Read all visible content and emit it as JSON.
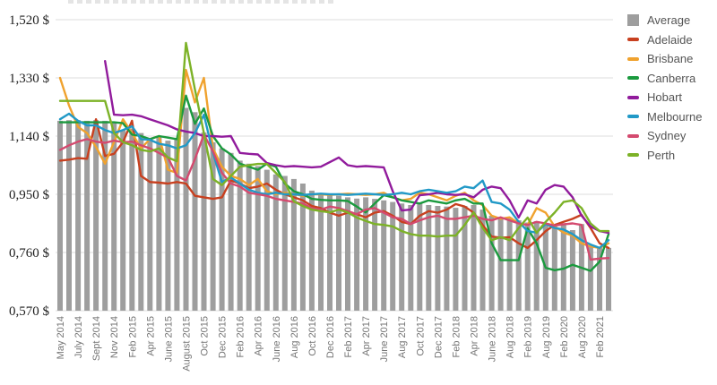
{
  "title_cropped": "",
  "chart_data": {
    "type": "combo-bar-line",
    "unit": "$",
    "grid": true,
    "legend_position": "right",
    "ylim": [
      0.57,
      1.52
    ],
    "y_ticks": {
      "values": [
        1.52,
        1.33,
        1.14,
        0.95,
        0.76,
        0.57
      ],
      "labels": [
        "1,520 $",
        "1,330 $",
        "1,140 $",
        "0,950 $",
        "0,760 $",
        "0,570 $"
      ]
    },
    "n_points": 62,
    "label_every_nth_point": 2,
    "x_tick_labels": [
      "May 2014",
      "July 2014",
      "Sept 2014",
      "Nov 2014",
      "Feb 2015",
      "Apr 2015",
      "June 2015",
      "August 2015",
      "Oct 2015",
      "Dec 2015",
      "Feb 2016",
      "Apr 2016",
      "June 2016",
      "Aug 2016",
      "Oct 2016",
      "Dec 2016",
      "Feb 2017",
      "Apr 2017",
      "June 2017",
      "Aug 2017",
      "Oct 2017",
      "Dec 2017",
      "Feb 2018",
      "Apr 2018",
      "June 2018",
      "Aug 2018",
      "Feb 2019",
      "Aug 2019",
      "Feb 2020",
      "Aug 2020",
      "Feb 2021"
    ],
    "series": [
      {
        "name": "Average",
        "type": "bar",
        "color": "#9E9E9E",
        "values": [
          1.19,
          1.192,
          1.192,
          1.19,
          1.192,
          1.19,
          1.185,
          1.16,
          1.165,
          1.15,
          1.13,
          1.14,
          1.125,
          1.13,
          1.232,
          1.218,
          1.152,
          1.12,
          1.1,
          1.085,
          1.06,
          1.05,
          1.042,
          1.03,
          1.015,
          1.01,
          1.0,
          0.985,
          0.962,
          0.95,
          0.952,
          0.945,
          0.94,
          0.936,
          0.94,
          0.935,
          0.93,
          0.925,
          0.92,
          0.915,
          0.92,
          0.915,
          0.912,
          0.91,
          0.906,
          0.912,
          0.915,
          0.9,
          0.88,
          0.872,
          0.875,
          0.865,
          0.858,
          0.862,
          0.85,
          0.845,
          0.852,
          0.833,
          0.853,
          0.78,
          0.778,
          0.775
        ]
      },
      {
        "name": "Adelaide",
        "type": "line",
        "color": "#C8401F",
        "values": [
          1.06,
          1.063,
          1.068,
          1.066,
          1.195,
          1.075,
          1.082,
          1.12,
          1.19,
          1.01,
          0.99,
          0.988,
          0.985,
          0.99,
          0.985,
          0.945,
          0.94,
          0.935,
          0.94,
          0.995,
          0.985,
          0.97,
          0.975,
          0.985,
          0.965,
          0.95,
          0.94,
          0.93,
          0.912,
          0.905,
          0.89,
          0.88,
          0.89,
          0.885,
          0.875,
          0.89,
          0.895,
          0.88,
          0.86,
          0.853,
          0.88,
          0.895,
          0.89,
          0.9,
          0.918,
          0.91,
          0.89,
          0.85,
          0.812,
          0.808,
          0.81,
          0.79,
          0.775,
          0.8,
          0.83,
          0.85,
          0.86,
          0.87,
          0.883,
          0.84,
          0.79,
          0.775
        ]
      },
      {
        "name": "Brisbane",
        "type": "line",
        "color": "#F0A22E",
        "values": [
          1.33,
          1.24,
          1.17,
          1.15,
          1.105,
          1.05,
          1.12,
          1.195,
          1.15,
          1.1,
          1.13,
          1.14,
          1.03,
          1.02,
          1.356,
          1.25,
          1.33,
          1.1,
          1.04,
          1.01,
          1.0,
          0.98,
          1.0,
          0.96,
          0.95,
          0.955,
          0.95,
          0.945,
          0.95,
          0.95,
          0.948,
          0.95,
          0.952,
          0.95,
          0.948,
          0.95,
          0.955,
          0.94,
          0.93,
          0.935,
          0.955,
          0.95,
          0.94,
          0.93,
          0.945,
          0.955,
          0.93,
          0.915,
          0.88,
          0.87,
          0.875,
          0.855,
          0.85,
          0.905,
          0.89,
          0.845,
          0.825,
          0.815,
          0.79,
          0.78,
          0.775,
          0.79
        ]
      },
      {
        "name": "Canberra",
        "type": "line",
        "color": "#1B9A3E",
        "values": [
          1.185,
          1.185,
          1.185,
          1.185,
          1.185,
          1.185,
          1.185,
          1.182,
          1.145,
          1.14,
          1.13,
          1.14,
          1.135,
          1.13,
          1.272,
          1.18,
          1.23,
          1.14,
          1.1,
          1.08,
          1.05,
          1.04,
          1.03,
          1.05,
          1.04,
          0.985,
          0.96,
          0.95,
          0.935,
          0.932,
          0.93,
          0.93,
          0.928,
          0.91,
          0.891,
          0.92,
          0.947,
          0.94,
          0.93,
          0.925,
          0.92,
          0.93,
          0.925,
          0.92,
          0.93,
          0.935,
          0.92,
          0.92,
          0.79,
          0.735,
          0.735,
          0.735,
          0.839,
          0.79,
          0.71,
          0.702,
          0.707,
          0.72,
          0.71,
          0.7,
          0.73,
          0.82
        ]
      },
      {
        "name": "Hobart",
        "type": "line",
        "color": "#911B9C",
        "values": [
          null,
          null,
          null,
          null,
          null,
          1.385,
          1.21,
          1.208,
          1.21,
          1.205,
          1.195,
          1.185,
          1.175,
          1.162,
          1.155,
          1.15,
          1.14,
          1.14,
          1.138,
          1.14,
          1.085,
          1.082,
          1.08,
          1.052,
          1.045,
          1.04,
          1.042,
          1.04,
          1.038,
          1.04,
          1.055,
          1.07,
          1.045,
          1.04,
          1.042,
          1.04,
          1.038,
          0.96,
          0.897,
          0.9,
          0.947,
          0.95,
          0.955,
          0.95,
          0.948,
          0.95,
          0.94,
          0.965,
          0.975,
          0.97,
          0.93,
          0.874,
          0.93,
          0.92,
          0.965,
          0.98,
          0.975,
          0.94,
          0.88,
          0.845,
          0.83,
          0.824
        ]
      },
      {
        "name": "Melbourne",
        "type": "line",
        "color": "#2199C7",
        "values": [
          1.195,
          1.213,
          1.19,
          1.175,
          1.175,
          1.16,
          1.15,
          1.16,
          1.172,
          1.13,
          1.128,
          1.115,
          1.11,
          1.1,
          1.11,
          1.15,
          1.21,
          1.085,
          0.99,
          1.005,
          0.985,
          0.965,
          0.955,
          0.95,
          0.955,
          0.95,
          0.95,
          0.948,
          0.95,
          0.952,
          0.95,
          0.95,
          0.948,
          0.95,
          0.952,
          0.95,
          0.948,
          0.95,
          0.955,
          0.95,
          0.96,
          0.965,
          0.96,
          0.955,
          0.96,
          0.975,
          0.97,
          0.995,
          0.925,
          0.92,
          0.9,
          0.86,
          0.83,
          0.825,
          0.853,
          0.84,
          0.835,
          0.82,
          0.8,
          0.786,
          0.775,
          0.8
        ]
      },
      {
        "name": "Sydney",
        "type": "line",
        "color": "#D44A6F",
        "values": [
          1.095,
          1.11,
          1.122,
          1.13,
          1.122,
          1.118,
          1.125,
          1.12,
          1.122,
          1.11,
          1.1,
          1.085,
          1.07,
          1.01,
          0.995,
          1.065,
          1.145,
          1.09,
          1.02,
          0.985,
          0.975,
          0.955,
          0.95,
          0.945,
          0.935,
          0.93,
          0.925,
          0.92,
          0.905,
          0.9,
          0.91,
          0.905,
          0.895,
          0.885,
          0.9,
          0.905,
          0.89,
          0.875,
          0.87,
          0.853,
          0.865,
          0.875,
          0.88,
          0.87,
          0.87,
          0.875,
          0.88,
          0.87,
          0.865,
          0.875,
          0.865,
          0.855,
          0.85,
          0.86,
          0.855,
          0.848,
          0.852,
          0.855,
          0.85,
          0.737,
          0.74,
          0.742
        ]
      },
      {
        "name": "Perth",
        "type": "line",
        "color": "#7CB227",
        "values": [
          1.255,
          1.255,
          1.255,
          1.255,
          1.255,
          1.255,
          1.15,
          1.12,
          1.11,
          1.095,
          1.09,
          1.1,
          1.07,
          1.058,
          1.444,
          1.292,
          1.15,
          1.0,
          0.98,
          1.01,
          1.04,
          1.045,
          1.049,
          1.049,
          1.02,
          0.99,
          0.927,
          0.912,
          0.9,
          0.895,
          0.891,
          0.9,
          0.891,
          0.874,
          0.863,
          0.853,
          0.85,
          0.845,
          0.83,
          0.82,
          0.815,
          0.815,
          0.812,
          0.815,
          0.815,
          0.85,
          0.891,
          0.84,
          0.8,
          0.81,
          0.8,
          0.84,
          0.874,
          0.824,
          0.86,
          0.89,
          0.925,
          0.93,
          0.905,
          0.855,
          0.83,
          0.83
        ]
      }
    ]
  }
}
